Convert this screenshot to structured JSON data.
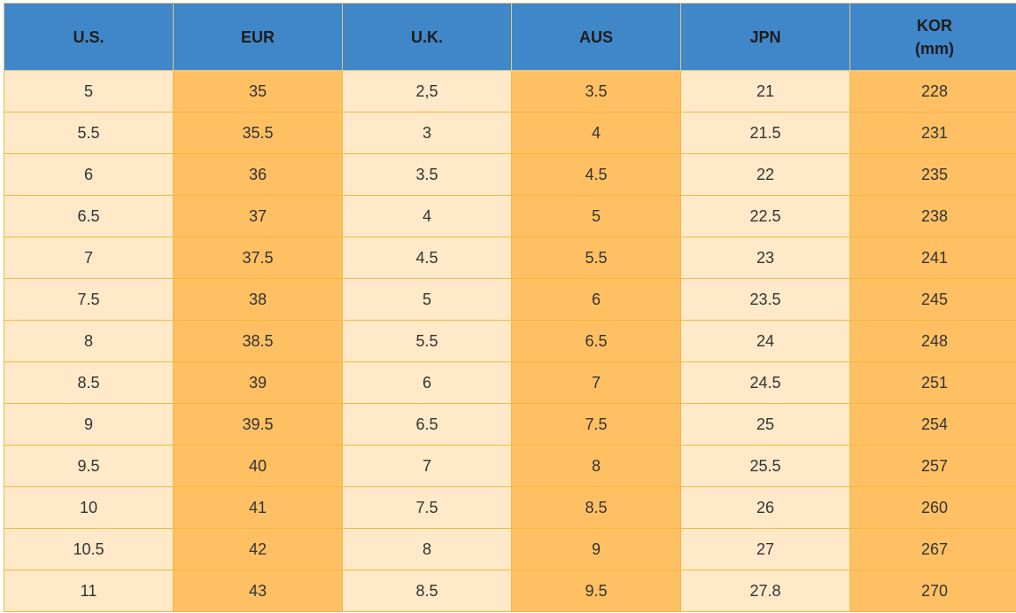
{
  "table": {
    "header": [
      "U.S.",
      "EUR",
      "U.K.",
      "AUS",
      "JPN",
      "KOR\n(mm)"
    ],
    "rows": [
      [
        "5",
        "35",
        "2,5",
        "3.5",
        "21",
        "228"
      ],
      [
        "5.5",
        "35.5",
        "3",
        "4",
        "21.5",
        "231"
      ],
      [
        "6",
        "36",
        "3.5",
        "4.5",
        "22",
        "235"
      ],
      [
        "6.5",
        "37",
        "4",
        "5",
        "22.5",
        "238"
      ],
      [
        "7",
        "37.5",
        "4.5",
        "5.5",
        "23",
        "241"
      ],
      [
        "7.5",
        "38",
        "5",
        "6",
        "23.5",
        "245"
      ],
      [
        "8",
        "38.5",
        "5.5",
        "6.5",
        "24",
        "248"
      ],
      [
        "8.5",
        "39",
        "6",
        "7",
        "24.5",
        "251"
      ],
      [
        "9",
        "39.5",
        "6.5",
        "7.5",
        "25",
        "254"
      ],
      [
        "9.5",
        "40",
        "7",
        "8",
        "25.5",
        "257"
      ],
      [
        "10",
        "41",
        "7.5",
        "8.5",
        "26",
        "260"
      ],
      [
        "10.5",
        "42",
        "8",
        "9",
        "27",
        "267"
      ],
      [
        "11",
        "43",
        "8.5",
        "9.5",
        "27.8",
        "270"
      ]
    ]
  }
}
